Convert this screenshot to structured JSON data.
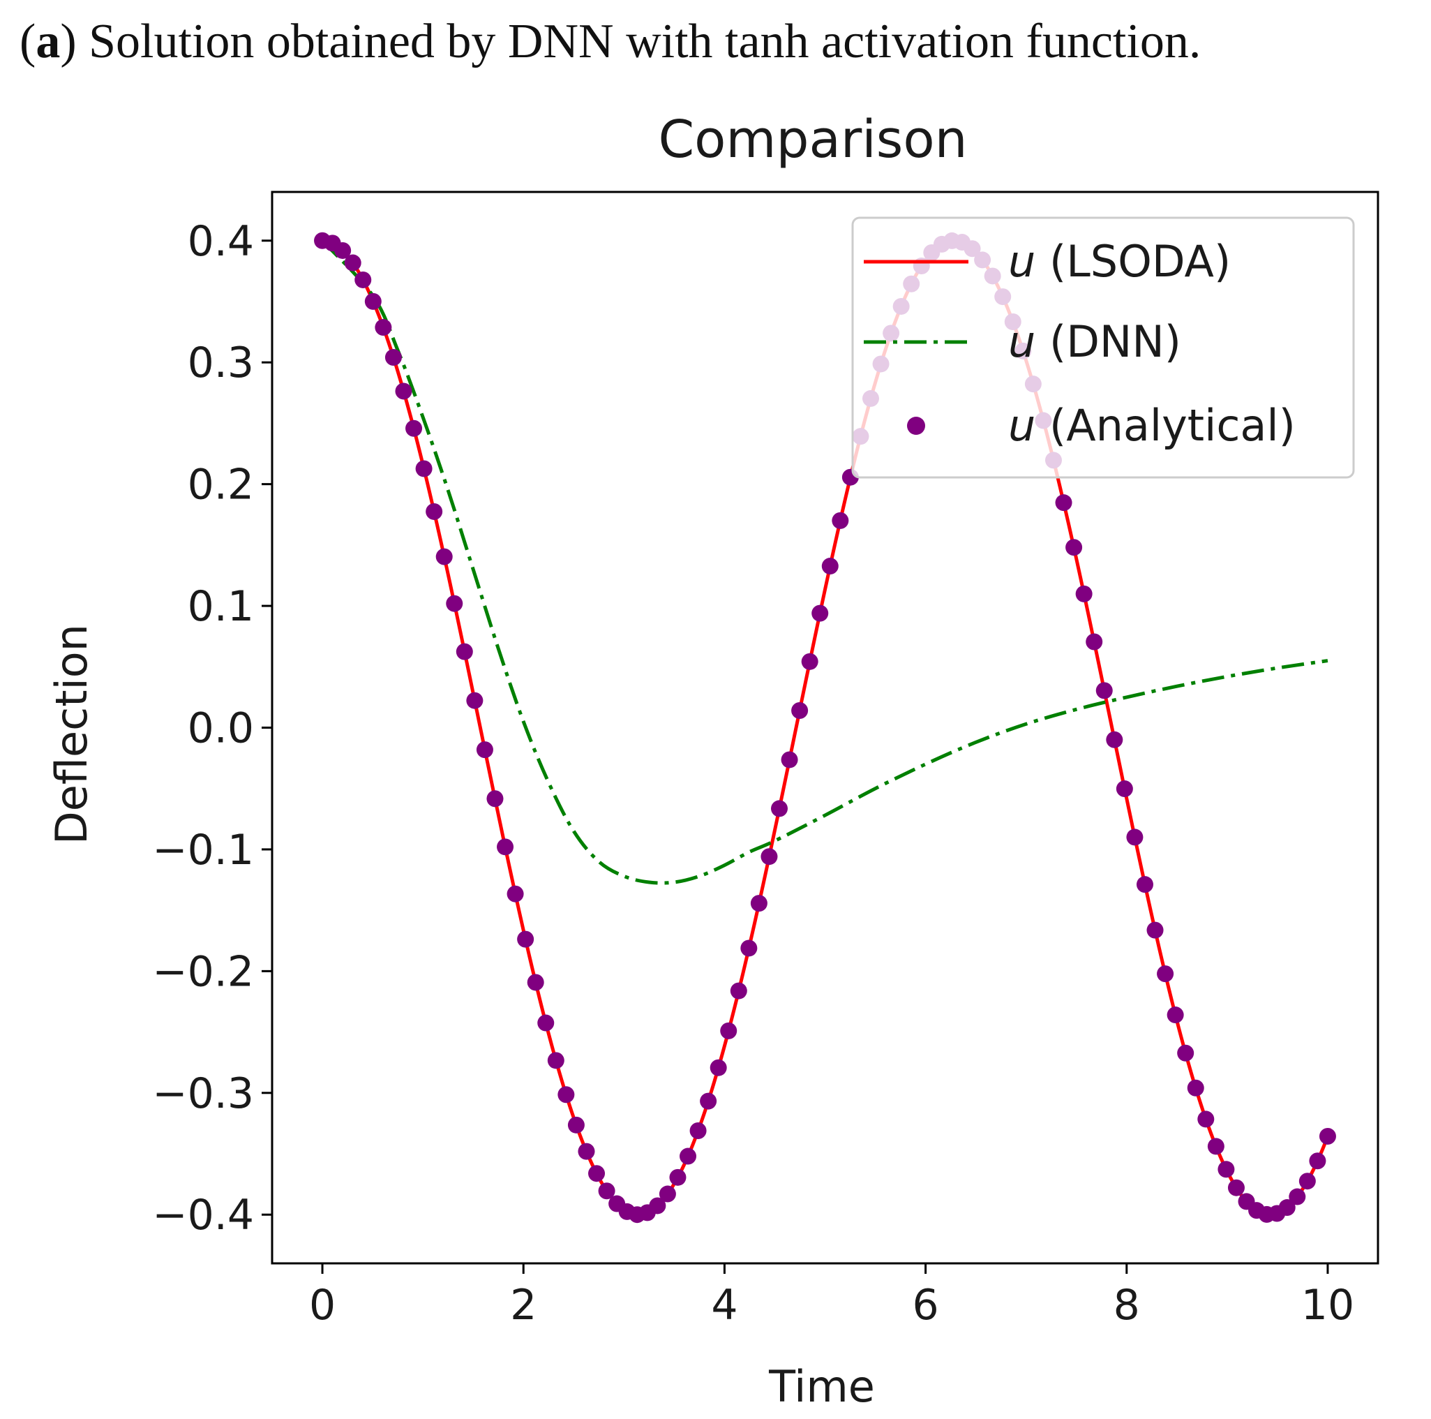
{
  "caption": {
    "open_paren": "(",
    "label": "a",
    "text": ") Solution obtained by DNN with tanh activation function."
  },
  "chart_data": {
    "type": "line",
    "title": "Comparison",
    "xlabel": "Time",
    "ylabel": "Deflection",
    "xlim": [
      -0.5,
      10.5
    ],
    "ylim": [
      -0.44,
      0.44
    ],
    "xticks": [
      0,
      2,
      4,
      6,
      8,
      10
    ],
    "xtick_labels": [
      "0",
      "2",
      "4",
      "6",
      "8",
      "10"
    ],
    "yticks": [
      0.4,
      0.3,
      0.2,
      0.1,
      0.0,
      -0.1,
      -0.2,
      -0.3,
      -0.4
    ],
    "ytick_labels": [
      "0.4",
      "0.3",
      "0.2",
      "0.1",
      "0.0",
      "−0.1",
      "−0.2",
      "−0.3",
      "−0.4"
    ],
    "grid": false,
    "legend_position": "top-right",
    "legend": [
      {
        "series": "lsoda",
        "prefix": "u",
        "suffix": " (LSODA)"
      },
      {
        "series": "dnn",
        "prefix": "u",
        "suffix": " (DNN)"
      },
      {
        "series": "analytical",
        "prefix": "u",
        "suffix": " (Analytical)"
      }
    ],
    "series": [
      {
        "key": "lsoda",
        "name": "u (LSODA)",
        "style": "solid-line",
        "color": "#ff0000",
        "function": "0.4*cos(t)",
        "x_range": [
          0,
          10
        ]
      },
      {
        "key": "dnn",
        "name": "u (DNN)",
        "style": "dash-dot-line",
        "color": "#008000",
        "x": [
          0,
          0.5,
          0.75,
          1.0,
          1.25,
          1.5,
          1.75,
          2.0,
          2.25,
          2.5,
          2.75,
          3.0,
          3.25,
          3.5,
          3.75,
          4.0,
          4.25,
          4.5,
          5.0,
          5.5,
          6.0,
          6.5,
          7.0,
          7.5,
          8.0,
          8.5,
          9.0,
          9.5,
          10.0
        ],
        "y": [
          0.4,
          0.355,
          0.31,
          0.255,
          0.195,
          0.13,
          0.065,
          0.005,
          -0.045,
          -0.085,
          -0.11,
          -0.122,
          -0.127,
          -0.127,
          -0.122,
          -0.113,
          -0.102,
          -0.093,
          -0.072,
          -0.05,
          -0.03,
          -0.012,
          0.003,
          0.015,
          0.025,
          0.034,
          0.042,
          0.049,
          0.055
        ]
      },
      {
        "key": "analytical",
        "name": "u (Analytical)",
        "style": "markers",
        "color": "#800080",
        "function": "0.4*cos(t)",
        "x_start": 0,
        "x_end": 10,
        "num_points": 100
      }
    ]
  }
}
